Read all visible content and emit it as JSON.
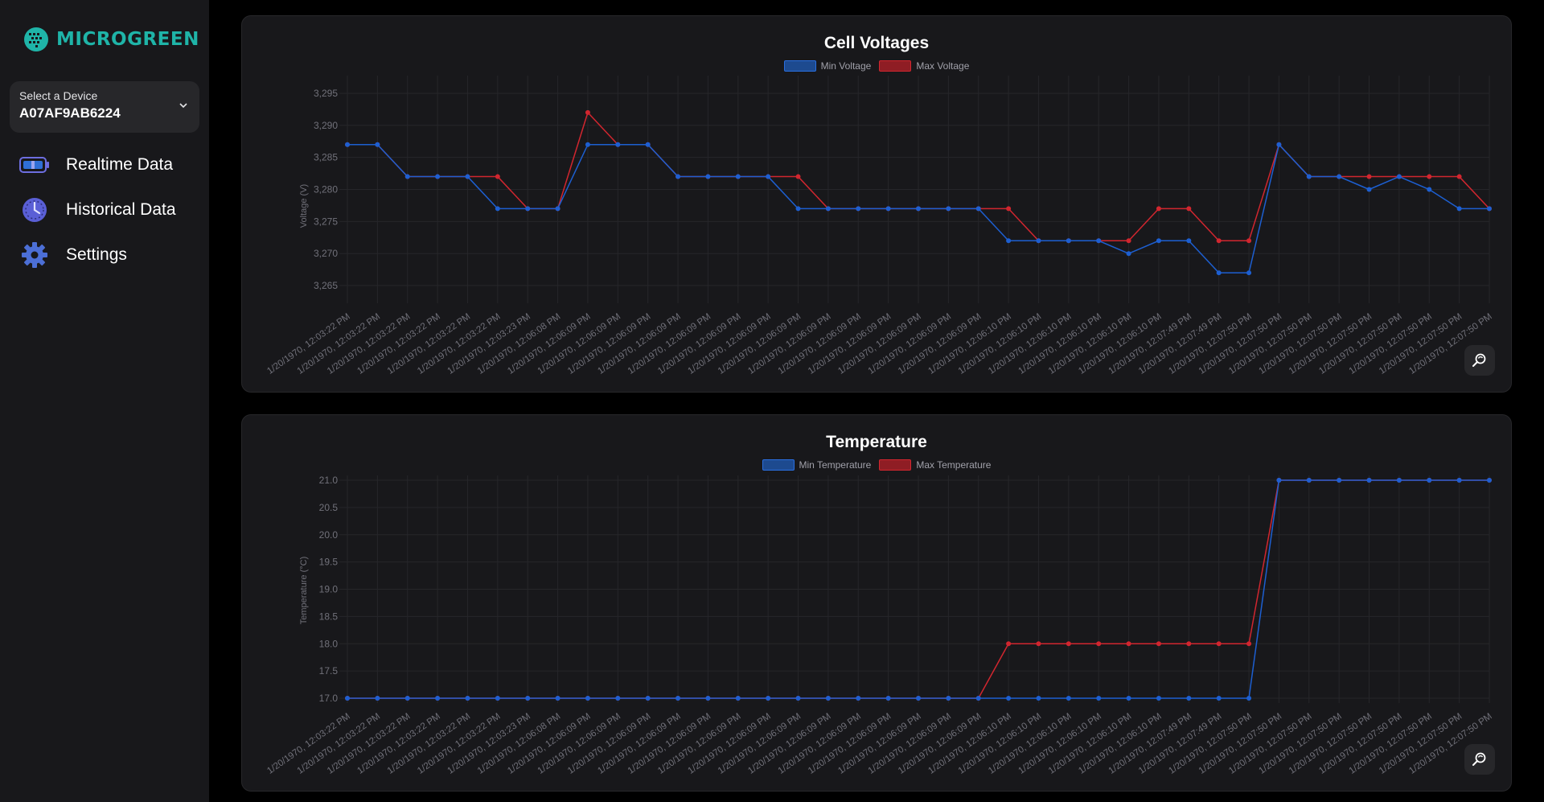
{
  "brand": {
    "name": "MICROGREEN",
    "color": "#1fb4a8"
  },
  "device_select": {
    "label": "Select a Device",
    "value": "A07AF9AB6224"
  },
  "nav": [
    {
      "label": "Realtime Data",
      "icon": "battery-icon"
    },
    {
      "label": "Historical Data",
      "icon": "clock-icon"
    },
    {
      "label": "Settings",
      "icon": "gear-icon"
    }
  ],
  "colors": {
    "min": "#1d5fd1",
    "max": "#d1262f",
    "grid": "#26262a",
    "text": "#71717a"
  },
  "chart_data": [
    {
      "type": "line",
      "title": "Cell Voltages",
      "ylabel": "Voltage (V)",
      "ylim": [
        3.263,
        3.297
      ],
      "yticks": [
        "3,295",
        "3,290",
        "3,285",
        "3,280",
        "3,275",
        "3,270",
        "3,265"
      ],
      "ytick_values": [
        3.295,
        3.29,
        3.285,
        3.28,
        3.275,
        3.27,
        3.265
      ],
      "categories": [
        "1/20/1970, 12:03:22 PM",
        "1/20/1970, 12:03:22 PM",
        "1/20/1970, 12:03:22 PM",
        "1/20/1970, 12:03:22 PM",
        "1/20/1970, 12:03:22 PM",
        "1/20/1970, 12:03:22 PM",
        "1/20/1970, 12:03:23 PM",
        "1/20/1970, 12:06:08 PM",
        "1/20/1970, 12:06:09 PM",
        "1/20/1970, 12:06:09 PM",
        "1/20/1970, 12:06:09 PM",
        "1/20/1970, 12:06:09 PM",
        "1/20/1970, 12:06:09 PM",
        "1/20/1970, 12:06:09 PM",
        "1/20/1970, 12:06:09 PM",
        "1/20/1970, 12:06:09 PM",
        "1/20/1970, 12:06:09 PM",
        "1/20/1970, 12:06:09 PM",
        "1/20/1970, 12:06:09 PM",
        "1/20/1970, 12:06:09 PM",
        "1/20/1970, 12:06:09 PM",
        "1/20/1970, 12:06:09 PM",
        "1/20/1970, 12:06:10 PM",
        "1/20/1970, 12:06:10 PM",
        "1/20/1970, 12:06:10 PM",
        "1/20/1970, 12:06:10 PM",
        "1/20/1970, 12:06:10 PM",
        "1/20/1970, 12:06:10 PM",
        "1/20/1970, 12:07:49 PM",
        "1/20/1970, 12:07:49 PM",
        "1/20/1970, 12:07:50 PM",
        "1/20/1970, 12:07:50 PM",
        "1/20/1970, 12:07:50 PM",
        "1/20/1970, 12:07:50 PM",
        "1/20/1970, 12:07:50 PM",
        "1/20/1970, 12:07:50 PM",
        "1/20/1970, 12:07:50 PM",
        "1/20/1970, 12:07:50 PM",
        "1/20/1970, 12:07:50 PM"
      ],
      "series": [
        {
          "name": "Min Voltage",
          "values": [
            3.287,
            3.287,
            3.282,
            3.282,
            3.282,
            3.277,
            3.277,
            3.277,
            3.287,
            3.287,
            3.287,
            3.282,
            3.282,
            3.282,
            3.282,
            3.277,
            3.277,
            3.277,
            3.277,
            3.277,
            3.277,
            3.277,
            3.272,
            3.272,
            3.272,
            3.272,
            3.27,
            3.272,
            3.272,
            3.267,
            3.267,
            3.287,
            3.282,
            3.282,
            3.28,
            3.282,
            3.28,
            3.277,
            3.277
          ]
        },
        {
          "name": "Max Voltage",
          "values": [
            3.287,
            3.287,
            3.282,
            3.282,
            3.282,
            3.282,
            3.277,
            3.277,
            3.292,
            3.287,
            3.287,
            3.282,
            3.282,
            3.282,
            3.282,
            3.282,
            3.277,
            3.277,
            3.277,
            3.277,
            3.277,
            3.277,
            3.277,
            3.272,
            3.272,
            3.272,
            3.272,
            3.277,
            3.277,
            3.272,
            3.272,
            3.287,
            3.282,
            3.282,
            3.282,
            3.282,
            3.282,
            3.282,
            3.277
          ]
        }
      ]
    },
    {
      "type": "line",
      "title": "Temperature",
      "ylabel": "Temperature (°C)",
      "ylim": [
        17.0,
        21.0
      ],
      "yticks": [
        "21.0",
        "20.5",
        "20.0",
        "19.5",
        "19.0",
        "18.5",
        "18.0",
        "17.5",
        "17.0"
      ],
      "ytick_values": [
        21,
        20.5,
        20,
        19.5,
        19,
        18.5,
        18,
        17.5,
        17
      ],
      "categories": [
        "1/20/1970, 12:03:22 PM",
        "1/20/1970, 12:03:22 PM",
        "1/20/1970, 12:03:22 PM",
        "1/20/1970, 12:03:22 PM",
        "1/20/1970, 12:03:22 PM",
        "1/20/1970, 12:03:22 PM",
        "1/20/1970, 12:03:23 PM",
        "1/20/1970, 12:06:08 PM",
        "1/20/1970, 12:06:09 PM",
        "1/20/1970, 12:06:09 PM",
        "1/20/1970, 12:06:09 PM",
        "1/20/1970, 12:06:09 PM",
        "1/20/1970, 12:06:09 PM",
        "1/20/1970, 12:06:09 PM",
        "1/20/1970, 12:06:09 PM",
        "1/20/1970, 12:06:09 PM",
        "1/20/1970, 12:06:09 PM",
        "1/20/1970, 12:06:09 PM",
        "1/20/1970, 12:06:09 PM",
        "1/20/1970, 12:06:09 PM",
        "1/20/1970, 12:06:09 PM",
        "1/20/1970, 12:06:09 PM",
        "1/20/1970, 12:06:10 PM",
        "1/20/1970, 12:06:10 PM",
        "1/20/1970, 12:06:10 PM",
        "1/20/1970, 12:06:10 PM",
        "1/20/1970, 12:06:10 PM",
        "1/20/1970, 12:06:10 PM",
        "1/20/1970, 12:07:49 PM",
        "1/20/1970, 12:07:49 PM",
        "1/20/1970, 12:07:50 PM",
        "1/20/1970, 12:07:50 PM",
        "1/20/1970, 12:07:50 PM",
        "1/20/1970, 12:07:50 PM",
        "1/20/1970, 12:07:50 PM",
        "1/20/1970, 12:07:50 PM",
        "1/20/1970, 12:07:50 PM",
        "1/20/1970, 12:07:50 PM",
        "1/20/1970, 12:07:50 PM"
      ],
      "series": [
        {
          "name": "Min Temperature",
          "values": [
            17,
            17,
            17,
            17,
            17,
            17,
            17,
            17,
            17,
            17,
            17,
            17,
            17,
            17,
            17,
            17,
            17,
            17,
            17,
            17,
            17,
            17,
            17,
            17,
            17,
            17,
            17,
            17,
            17,
            17,
            17,
            21,
            21,
            21,
            21,
            21,
            21,
            21,
            21
          ]
        },
        {
          "name": "Max Temperature",
          "values": [
            17,
            17,
            17,
            17,
            17,
            17,
            17,
            17,
            17,
            17,
            17,
            17,
            17,
            17,
            17,
            17,
            17,
            17,
            17,
            17,
            17,
            17,
            18,
            18,
            18,
            18,
            18,
            18,
            18,
            18,
            18,
            21,
            21,
            21,
            21,
            21,
            21,
            21,
            21
          ]
        }
      ]
    }
  ]
}
